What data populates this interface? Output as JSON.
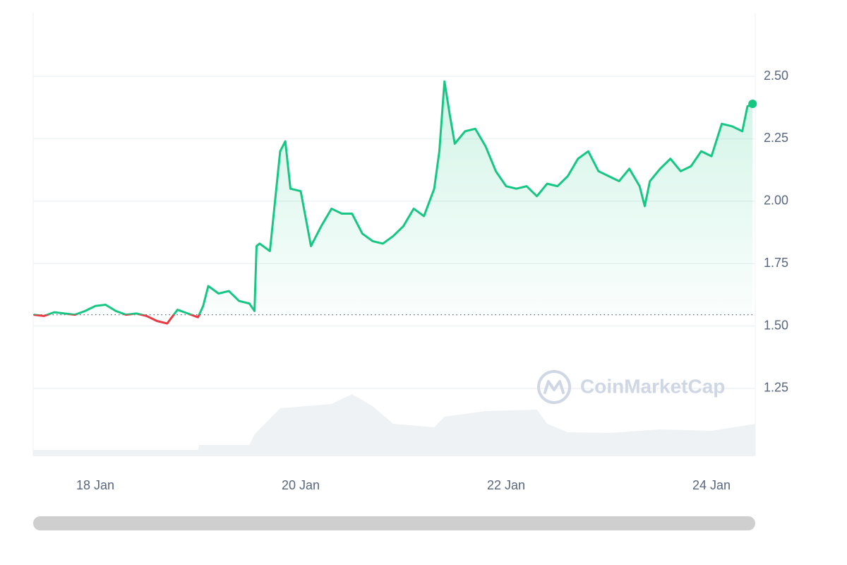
{
  "chart_data": {
    "type": "line",
    "x": [
      17.4,
      17.5,
      17.6,
      17.7,
      17.8,
      17.9,
      18.0,
      18.1,
      18.2,
      18.3,
      18.4,
      18.5,
      18.6,
      18.7,
      18.8,
      18.9,
      19.0,
      19.05,
      19.1,
      19.2,
      19.3,
      19.4,
      19.5,
      19.55,
      19.57,
      19.6,
      19.7,
      19.75,
      19.8,
      19.85,
      19.9,
      20.0,
      20.1,
      20.2,
      20.3,
      20.4,
      20.5,
      20.6,
      20.7,
      20.8,
      20.9,
      21.0,
      21.1,
      21.2,
      21.3,
      21.35,
      21.4,
      21.45,
      21.5,
      21.6,
      21.7,
      21.8,
      21.9,
      22.0,
      22.1,
      22.2,
      22.3,
      22.4,
      22.5,
      22.6,
      22.7,
      22.8,
      22.9,
      23.0,
      23.1,
      23.2,
      23.3,
      23.35,
      23.4,
      23.5,
      23.6,
      23.7,
      23.8,
      23.9,
      24.0,
      24.1,
      24.2,
      24.3,
      24.35,
      24.4
    ],
    "values": [
      1.545,
      1.54,
      1.555,
      1.55,
      1.545,
      1.56,
      1.58,
      1.585,
      1.56,
      1.545,
      1.55,
      1.54,
      1.52,
      1.51,
      1.565,
      1.55,
      1.535,
      1.58,
      1.66,
      1.63,
      1.64,
      1.6,
      1.59,
      1.56,
      1.82,
      1.83,
      1.8,
      2.0,
      2.2,
      2.24,
      2.05,
      2.04,
      1.82,
      1.9,
      1.97,
      1.95,
      1.95,
      1.87,
      1.84,
      1.83,
      1.86,
      1.9,
      1.97,
      1.94,
      2.05,
      2.2,
      2.48,
      2.35,
      2.23,
      2.28,
      2.29,
      2.22,
      2.12,
      2.06,
      2.05,
      2.06,
      2.02,
      2.07,
      2.06,
      2.1,
      2.17,
      2.2,
      2.12,
      2.1,
      2.08,
      2.13,
      2.06,
      1.98,
      2.08,
      2.13,
      2.17,
      2.12,
      2.14,
      2.2,
      2.18,
      2.31,
      2.3,
      2.28,
      2.38,
      2.39
    ],
    "baseline": 1.545,
    "up_color": "#16c784",
    "down_color": "#ea3943",
    "xlim": [
      17.395,
      24.426
    ],
    "ylim": [
      0.981,
      2.755
    ],
    "xticks": [
      {
        "value": 18,
        "label": "18 Jan"
      },
      {
        "value": 20,
        "label": "20 Jan"
      },
      {
        "value": 22,
        "label": "22 Jan"
      },
      {
        "value": 24,
        "label": "24 Jan"
      }
    ],
    "yticks": [
      {
        "value": 1.25,
        "label": "1.25"
      },
      {
        "value": 1.5,
        "label": "1.50"
      },
      {
        "value": 1.75,
        "label": "1.75"
      },
      {
        "value": 2.0,
        "label": "2.00"
      },
      {
        "value": 2.25,
        "label": "2.25"
      },
      {
        "value": 2.5,
        "label": "2.50"
      }
    ],
    "grid": true,
    "volume": {
      "color": "#eff2f5",
      "lim": [
        0,
        100
      ],
      "x": [
        17.395,
        19.0,
        19.01,
        19.5,
        19.55,
        19.8,
        20.3,
        20.5,
        20.7,
        20.9,
        21.3,
        21.4,
        21.8,
        22.3,
        22.4,
        22.6,
        23.0,
        23.5,
        24.0,
        24.426
      ],
      "values": [
        8,
        8,
        15,
        15,
        30,
        67,
        73,
        87,
        70,
        45,
        40,
        55,
        63,
        65,
        45,
        33,
        32,
        37,
        35,
        45
      ]
    },
    "watermark": "CoinMarketCap"
  }
}
